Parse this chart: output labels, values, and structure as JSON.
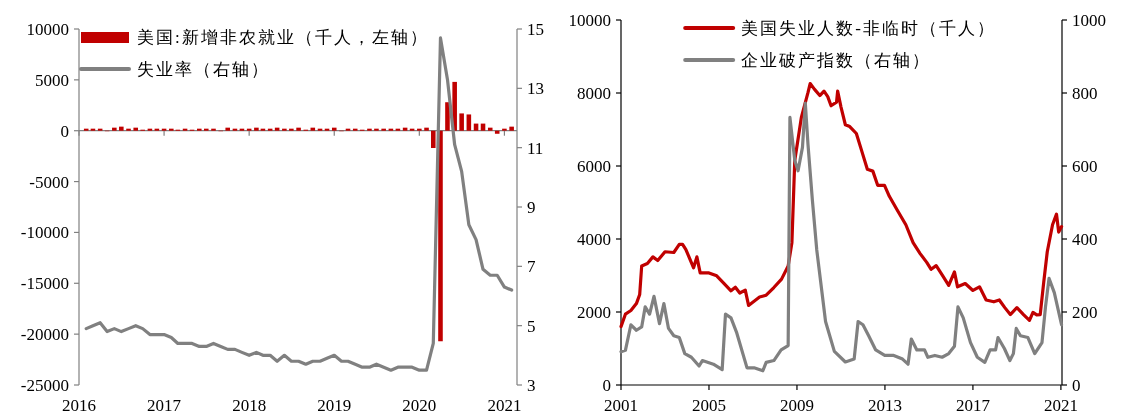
{
  "chart_data": [
    {
      "type": "bar",
      "xlim": [
        "2016-01-01",
        "2021-02-24"
      ],
      "xticks": [
        {
          "value": "2016-01-01",
          "label": "2016"
        },
        {
          "value": "2017-01-01",
          "label": "2017"
        },
        {
          "value": "2018-01-01",
          "label": "2018"
        },
        {
          "value": "2019-01-01",
          "label": "2019"
        },
        {
          "value": "2020-01-01",
          "label": "2020"
        },
        {
          "value": "2021-01-01",
          "label": "2021"
        }
      ],
      "ylim": [
        -25000,
        10000
      ],
      "yticks": [
        -25000,
        -20000,
        -15000,
        -10000,
        -5000,
        0,
        5000,
        10000
      ],
      "y2lim": [
        3,
        15
      ],
      "y2ticks": [
        3,
        5,
        7,
        9,
        11,
        13,
        15
      ],
      "legend": "top left",
      "x": [
        "2016-02",
        "2016-03",
        "2016-04",
        "2016-05",
        "2016-06",
        "2016-07",
        "2016-08",
        "2016-09",
        "2016-10",
        "2016-11",
        "2016-12",
        "2017-01",
        "2017-02",
        "2017-03",
        "2017-04",
        "2017-05",
        "2017-06",
        "2017-07",
        "2017-08",
        "2017-09",
        "2017-10",
        "2017-11",
        "2017-12",
        "2018-01",
        "2018-02",
        "2018-03",
        "2018-04",
        "2018-05",
        "2018-06",
        "2018-07",
        "2018-08",
        "2018-09",
        "2018-10",
        "2018-11",
        "2018-12",
        "2019-01",
        "2019-02",
        "2019-03",
        "2019-04",
        "2019-05",
        "2019-06",
        "2019-07",
        "2019-08",
        "2019-09",
        "2019-10",
        "2019-11",
        "2019-12",
        "2020-01",
        "2020-02",
        "2020-03",
        "2020-04",
        "2020-05",
        "2020-06",
        "2020-07",
        "2020-08",
        "2020-09",
        "2020-10",
        "2020-11",
        "2020-12",
        "2021-01",
        "2021-02"
      ],
      "series": [
        {
          "name": "美国:新增非农就业（千人，左轴）",
          "color": "#c00000",
          "values": [
            200,
            200,
            200,
            0,
            300,
            400,
            200,
            300,
            100,
            200,
            200,
            200,
            200,
            100,
            200,
            100,
            200,
            200,
            200,
            0,
            300,
            200,
            200,
            200,
            300,
            200,
            200,
            300,
            200,
            200,
            300,
            100,
            300,
            200,
            200,
            300,
            0,
            200,
            200,
            100,
            200,
            200,
            200,
            200,
            200,
            300,
            200,
            200,
            300,
            -1700,
            -20700,
            2800,
            4800,
            1700,
            1600,
            700,
            700,
            300,
            -300,
            200,
            400
          ]
        },
        {
          "name": "失业率（右轴）",
          "type": "line",
          "axis": "y2",
          "color": "#808080",
          "values": [
            4.9,
            5.0,
            5.1,
            4.8,
            4.9,
            4.8,
            4.9,
            5.0,
            4.9,
            4.7,
            4.7,
            4.7,
            4.6,
            4.4,
            4.4,
            4.4,
            4.3,
            4.3,
            4.4,
            4.3,
            4.2,
            4.2,
            4.1,
            4.0,
            4.1,
            4.0,
            4.0,
            3.8,
            4.0,
            3.8,
            3.8,
            3.7,
            3.8,
            3.8,
            3.9,
            4.0,
            3.8,
            3.8,
            3.7,
            3.6,
            3.6,
            3.7,
            3.6,
            3.5,
            3.6,
            3.6,
            3.6,
            3.5,
            3.5,
            4.4,
            14.7,
            13.3,
            11.1,
            10.2,
            8.4,
            7.9,
            6.9,
            6.7,
            6.7,
            6.3,
            6.2
          ]
        }
      ]
    },
    {
      "type": "line",
      "xlim": [
        2001,
        2021.05
      ],
      "xticks": [
        2001,
        2005,
        2009,
        2013,
        2017,
        2021
      ],
      "ylim": [
        0,
        10000
      ],
      "yticks": [
        0,
        2000,
        4000,
        6000,
        8000,
        10000
      ],
      "y2lim": [
        0,
        1000
      ],
      "y2ticks": [
        0,
        200,
        400,
        600,
        800,
        1000
      ],
      "legend": "top",
      "grid": false,
      "series": [
        {
          "name": "美国失业人数-非临时（千人）",
          "color": "#c00000",
          "x": [
            2001.0,
            2001.2,
            2001.45,
            2001.7,
            2001.85,
            2001.94,
            2002.2,
            2002.45,
            2002.67,
            2003.0,
            2003.4,
            2003.65,
            2003.8,
            2003.95,
            2004.3,
            2004.45,
            2004.6,
            2005.0,
            2005.35,
            2005.7,
            2006.0,
            2006.2,
            2006.4,
            2006.65,
            2006.8,
            2007.3,
            2007.6,
            2007.95,
            2008.3,
            2008.6,
            2008.77,
            2008.9,
            2009.2,
            2009.5,
            2009.6,
            2009.8,
            2010.04,
            2010.23,
            2010.4,
            2010.55,
            2010.8,
            2010.85,
            2011.0,
            2011.2,
            2011.4,
            2011.7,
            2011.95,
            2012.2,
            2012.45,
            2012.67,
            2012.98,
            2013.2,
            2013.55,
            2013.95,
            2014.28,
            2014.6,
            2014.9,
            2015.1,
            2015.33,
            2015.6,
            2015.9,
            2016.16,
            2016.3,
            2016.65,
            2017.0,
            2017.3,
            2017.6,
            2017.95,
            2018.2,
            2018.45,
            2018.7,
            2019.0,
            2019.3,
            2019.57,
            2019.73,
            2019.9,
            2020.06,
            2020.22,
            2020.38,
            2020.62,
            2020.8,
            2020.9,
            2021.03
          ],
          "values": [
            1600,
            1940,
            2040,
            2230,
            2480,
            3260,
            3330,
            3510,
            3410,
            3650,
            3630,
            3850,
            3850,
            3710,
            3210,
            3510,
            3070,
            3070,
            2990,
            2770,
            2580,
            2680,
            2520,
            2600,
            2180,
            2410,
            2460,
            2670,
            2900,
            3260,
            3900,
            6150,
            7330,
            8010,
            8260,
            8100,
            7930,
            8050,
            7900,
            7650,
            7750,
            8050,
            7620,
            7130,
            7080,
            6890,
            6400,
            5910,
            5860,
            5470,
            5470,
            5170,
            4800,
            4390,
            3900,
            3600,
            3360,
            3170,
            3270,
            3020,
            2730,
            3100,
            2690,
            2780,
            2590,
            2690,
            2330,
            2280,
            2330,
            2120,
            1930,
            2120,
            1930,
            1770,
            1990,
            1920,
            1930,
            2820,
            3650,
            4390,
            4680,
            4190,
            4340
          ]
        },
        {
          "name": "企业破产指数（右轴）",
          "axis": "y2",
          "color": "#808080",
          "x": [
            2001.0,
            2001.2,
            2001.45,
            2001.7,
            2001.94,
            2002.1,
            2002.3,
            2002.5,
            2002.75,
            2002.95,
            2003.16,
            2003.4,
            2003.65,
            2003.9,
            2004.2,
            2004.55,
            2004.7,
            2005.2,
            2005.6,
            2005.75,
            2006.0,
            2006.25,
            2006.73,
            2007.05,
            2007.45,
            2007.6,
            2007.95,
            2008.28,
            2008.6,
            2008.68,
            2008.9,
            2009.05,
            2009.25,
            2009.38,
            2009.5,
            2009.7,
            2009.9,
            2010.3,
            2010.7,
            2011.2,
            2011.6,
            2011.78,
            2012.0,
            2012.26,
            2012.58,
            2012.99,
            2013.4,
            2013.8,
            2014.05,
            2014.2,
            2014.45,
            2014.8,
            2014.95,
            2015.27,
            2015.6,
            2015.9,
            2016.16,
            2016.32,
            2016.56,
            2016.89,
            2017.2,
            2017.54,
            2017.78,
            2018.03,
            2018.14,
            2018.43,
            2018.68,
            2018.84,
            2018.97,
            2019.16,
            2019.5,
            2019.81,
            2020.14,
            2020.3,
            2020.46,
            2020.7,
            2021.03
          ],
          "values": [
            91,
            95,
            165,
            150,
            159,
            214,
            194,
            243,
            168,
            223,
            155,
            135,
            130,
            86,
            76,
            52,
            67,
            57,
            42,
            194,
            184,
            145,
            47,
            47,
            39,
            62,
            67,
            96,
            108,
            733,
            616,
            587,
            651,
            772,
            660,
            507,
            370,
            174,
            92,
            63,
            71,
            174,
            165,
            135,
            96,
            81,
            81,
            71,
            57,
            126,
            96,
            96,
            76,
            81,
            76,
            86,
            106,
            214,
            184,
            116,
            76,
            62,
            96,
            96,
            130,
            100,
            67,
            86,
            155,
            135,
            130,
            86,
            116,
            214,
            292,
            253,
            165
          ]
        }
      ]
    }
  ]
}
